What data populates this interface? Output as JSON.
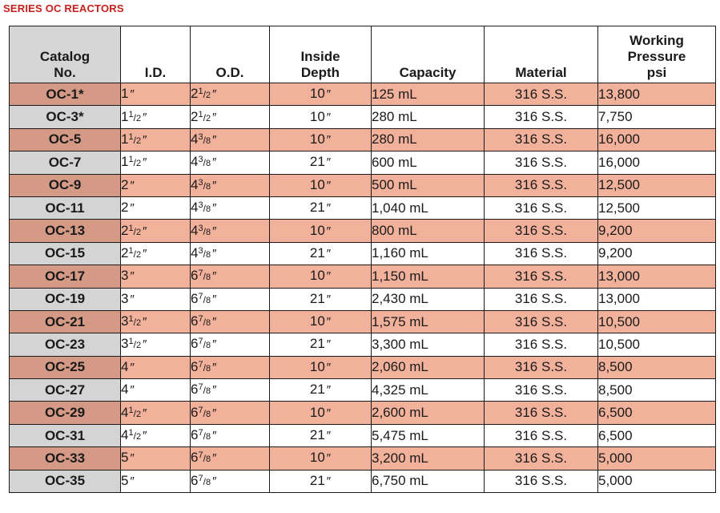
{
  "page": {
    "title": "SERIES OC REACTORS"
  },
  "table": {
    "headers": {
      "catalog": [
        "Catalog",
        "No."
      ],
      "id": "I.D.",
      "od": "O.D.",
      "depth": [
        "Inside",
        "Depth"
      ],
      "capacity": "Capacity",
      "material": "Material",
      "pressure": [
        "Working",
        "Pressure",
        "psi"
      ]
    },
    "inch_mark": "″",
    "rows": [
      {
        "catalog": "OC-1*",
        "id": {
          "whole": "1",
          "num": "",
          "den": ""
        },
        "od": {
          "whole": "2",
          "num": "1",
          "den": "2"
        },
        "depth": "10",
        "capacity": "125 mL",
        "material": "316 S.S.",
        "psi": "13,800"
      },
      {
        "catalog": "OC-3*",
        "id": {
          "whole": "1",
          "num": "1",
          "den": "2"
        },
        "od": {
          "whole": "2",
          "num": "1",
          "den": "2"
        },
        "depth": "10",
        "capacity": "280 mL",
        "material": "316 S.S.",
        "psi": "7,750"
      },
      {
        "catalog": "OC-5",
        "id": {
          "whole": "1",
          "num": "1",
          "den": "2"
        },
        "od": {
          "whole": "4",
          "num": "3",
          "den": "8"
        },
        "depth": "10",
        "capacity": "280 mL",
        "material": "316 S.S.",
        "psi": "16,000"
      },
      {
        "catalog": "OC-7",
        "id": {
          "whole": "1",
          "num": "1",
          "den": "2"
        },
        "od": {
          "whole": "4",
          "num": "3",
          "den": "8"
        },
        "depth": "21",
        "capacity": "600 mL",
        "material": "316 S.S.",
        "psi": "16,000"
      },
      {
        "catalog": "OC-9",
        "id": {
          "whole": "2",
          "num": "",
          "den": ""
        },
        "od": {
          "whole": "4",
          "num": "3",
          "den": "8"
        },
        "depth": "10",
        "capacity": "500 mL",
        "material": "316 S.S.",
        "psi": "12,500"
      },
      {
        "catalog": "OC-11",
        "id": {
          "whole": "2",
          "num": "",
          "den": ""
        },
        "od": {
          "whole": "4",
          "num": "3",
          "den": "8"
        },
        "depth": "21",
        "capacity": "1,040 mL",
        "material": "316 S.S.",
        "psi": "12,500"
      },
      {
        "catalog": "OC-13",
        "id": {
          "whole": "2",
          "num": "1",
          "den": "2"
        },
        "od": {
          "whole": "4",
          "num": "3",
          "den": "8"
        },
        "depth": "10",
        "capacity": "800 mL",
        "material": "316 S.S.",
        "psi": "9,200"
      },
      {
        "catalog": "OC-15",
        "id": {
          "whole": "2",
          "num": "1",
          "den": "2"
        },
        "od": {
          "whole": "4",
          "num": "3",
          "den": "8"
        },
        "depth": "21",
        "capacity": "1,160 mL",
        "material": "316 S.S.",
        "psi": "9,200"
      },
      {
        "catalog": "OC-17",
        "id": {
          "whole": "3",
          "num": "",
          "den": ""
        },
        "od": {
          "whole": "6",
          "num": "7",
          "den": "8"
        },
        "depth": "10",
        "capacity": "1,150 mL",
        "material": "316 S.S.",
        "psi": "13,000"
      },
      {
        "catalog": "OC-19",
        "id": {
          "whole": "3",
          "num": "",
          "den": ""
        },
        "od": {
          "whole": "6",
          "num": "7",
          "den": "8"
        },
        "depth": "21",
        "capacity": "2,430 mL",
        "material": "316 S.S.",
        "psi": "13,000"
      },
      {
        "catalog": "OC-21",
        "id": {
          "whole": "3",
          "num": "1",
          "den": "2"
        },
        "od": {
          "whole": "6",
          "num": "7",
          "den": "8"
        },
        "depth": "10",
        "capacity": "1,575 mL",
        "material": "316 S.S.",
        "psi": "10,500"
      },
      {
        "catalog": "OC-23",
        "id": {
          "whole": "3",
          "num": "1",
          "den": "2"
        },
        "od": {
          "whole": "6",
          "num": "7",
          "den": "8"
        },
        "depth": "21",
        "capacity": "3,300 mL",
        "material": "316 S.S.",
        "psi": "10,500"
      },
      {
        "catalog": "OC-25",
        "id": {
          "whole": "4",
          "num": "",
          "den": ""
        },
        "od": {
          "whole": "6",
          "num": "7",
          "den": "8"
        },
        "depth": "10",
        "capacity": "2,060 mL",
        "material": "316 S.S.",
        "psi": "8,500"
      },
      {
        "catalog": "OC-27",
        "id": {
          "whole": "4",
          "num": "",
          "den": ""
        },
        "od": {
          "whole": "6",
          "num": "7",
          "den": "8"
        },
        "depth": "21",
        "capacity": "4,325 mL",
        "material": "316 S.S.",
        "psi": "8,500"
      },
      {
        "catalog": "OC-29",
        "id": {
          "whole": "4",
          "num": "1",
          "den": "2"
        },
        "od": {
          "whole": "6",
          "num": "7",
          "den": "8"
        },
        "depth": "10",
        "capacity": "2,600 mL",
        "material": "316 S.S.",
        "psi": "6,500"
      },
      {
        "catalog": "OC-31",
        "id": {
          "whole": "4",
          "num": "1",
          "den": "2"
        },
        "od": {
          "whole": "6",
          "num": "7",
          "den": "8"
        },
        "depth": "21",
        "capacity": "5,475 mL",
        "material": "316 S.S.",
        "psi": "6,500"
      },
      {
        "catalog": "OC-33",
        "id": {
          "whole": "5",
          "num": "",
          "den": ""
        },
        "od": {
          "whole": "6",
          "num": "7",
          "den": "8"
        },
        "depth": "10",
        "capacity": "3,200 mL",
        "material": "316 S.S.",
        "psi": "5,000"
      },
      {
        "catalog": "OC-35",
        "id": {
          "whole": "5",
          "num": "",
          "den": ""
        },
        "od": {
          "whole": "6",
          "num": "7",
          "den": "8"
        },
        "depth": "21",
        "capacity": "6,750 mL",
        "material": "316 S.S.",
        "psi": "5,000"
      }
    ]
  },
  "colors": {
    "title": "#c8201c",
    "row_highlight": "#f2b19b",
    "catalog_highlight": "#d59a86",
    "catalog_plain": "#d4d4d4"
  }
}
